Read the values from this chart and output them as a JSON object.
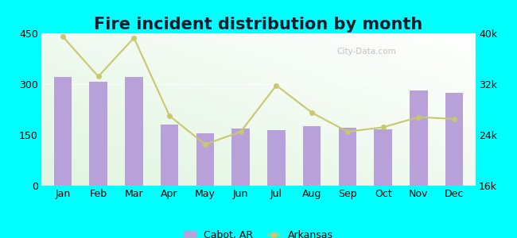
{
  "title": "Fire incident distribution by month",
  "months": [
    "Jan",
    "Feb",
    "Mar",
    "Apr",
    "May",
    "Jun",
    "Jul",
    "Aug",
    "Sep",
    "Oct",
    "Nov",
    "Dec"
  ],
  "cabot_values": [
    320,
    308,
    322,
    180,
    155,
    168,
    165,
    175,
    170,
    167,
    282,
    275
  ],
  "arkansas_values": [
    39500,
    33200,
    39300,
    27000,
    22500,
    24500,
    31800,
    27500,
    24500,
    25200,
    26800,
    26500
  ],
  "bar_color": "#b8a0d8",
  "line_color": "#c8c86e",
  "line_marker": "o",
  "background_color": "#00ffff",
  "left_ylim": [
    0,
    450
  ],
  "left_yticks": [
    0,
    150,
    300,
    450
  ],
  "right_ylim": [
    16000,
    40000
  ],
  "right_yticks": [
    16000,
    24000,
    32000,
    40000
  ],
  "right_yticklabels": [
    "16k",
    "24k",
    "32k",
    "40k"
  ],
  "legend_cabot": "Cabot, AR",
  "legend_arkansas": "Arkansas",
  "title_fontsize": 15,
  "axis_fontsize": 9,
  "legend_fontsize": 9,
  "watermark": "City-Data.com"
}
